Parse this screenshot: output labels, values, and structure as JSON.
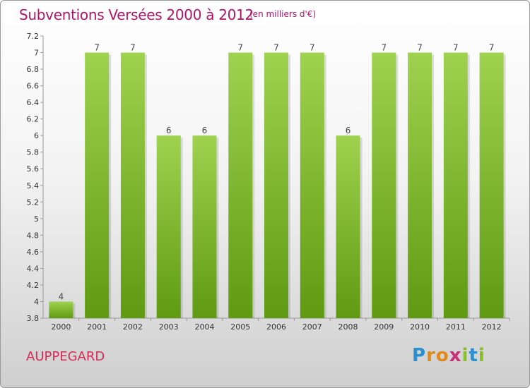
{
  "header": {
    "title": "Subventions Versées 2000 à 2012",
    "unit": "(en milliers d'€)"
  },
  "footer": {
    "place": "AUPPEGARD",
    "logo_letters": [
      "P",
      "r",
      "o",
      "x",
      "i",
      "t",
      "i"
    ]
  },
  "colors": {
    "title": "#b0156a",
    "place": "#d8295a",
    "bar_top": "#9fd24f",
    "bar_bottom": "#5f9a12",
    "logo": [
      "#2a8fd0",
      "#e08a1a",
      "#e08a1a",
      "#c8307a",
      "#8bbf2a",
      "#2a8fd0",
      "#8bbf2a"
    ]
  },
  "chart_data": {
    "type": "bar",
    "categories": [
      "2000",
      "2001",
      "2002",
      "2003",
      "2004",
      "2005",
      "2006",
      "2007",
      "2008",
      "2009",
      "2010",
      "2011",
      "2012"
    ],
    "values": [
      4,
      7,
      7,
      6,
      6,
      7,
      7,
      7,
      6,
      7,
      7,
      7,
      7
    ],
    "data_labels": [
      "4",
      "7",
      "7",
      "6",
      "6",
      "7",
      "7",
      "7",
      "6",
      "7",
      "7",
      "7",
      "7"
    ],
    "title": "Subventions Versées 2000 à 2012",
    "ylim": [
      3.8,
      7.2
    ],
    "yticks": [
      3.8,
      4,
      4.2,
      4.4,
      4.6,
      4.8,
      5,
      5.2,
      5.4,
      5.6,
      5.8,
      6,
      6.2,
      6.4,
      6.6,
      6.8,
      7,
      7.2
    ],
    "ytick_labels": [
      "3.8",
      "4",
      "4.2",
      "4.4",
      "4.6",
      "4.8",
      "5",
      "5.2",
      "5.4",
      "5.6",
      "5.8",
      "6",
      "6.2",
      "6.4",
      "6.6",
      "6.8",
      "7",
      "7.2"
    ],
    "grid": false,
    "legend": "none"
  }
}
